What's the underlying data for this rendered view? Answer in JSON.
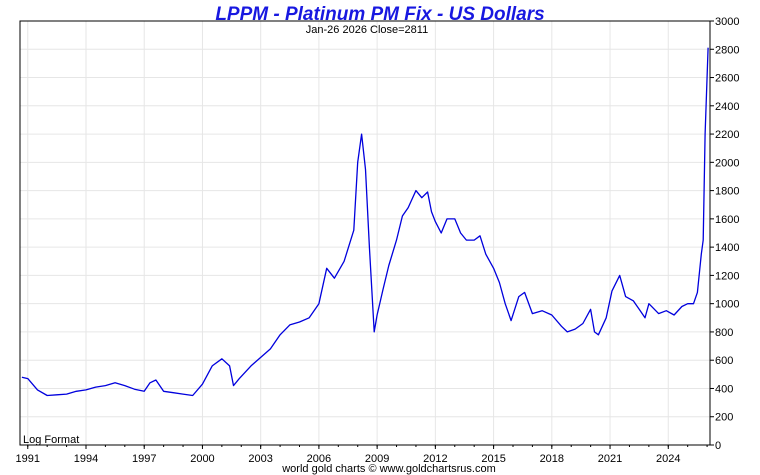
{
  "chart_data": {
    "type": "line",
    "title": "LPPM - Platinum PM Fix - US Dollars",
    "subtitle": "Jan-26  2026   Close=2811",
    "format_note": "Log Format",
    "credit": "world gold charts © www.goldchartsrus.com",
    "x_tick_labels": [
      "1991",
      "1994",
      "1997",
      "2000",
      "2003",
      "2006",
      "2009",
      "2012",
      "2015",
      "2018",
      "2021",
      "2024"
    ],
    "x_ticks": [
      1991,
      1994,
      1997,
      2000,
      2003,
      2006,
      2009,
      2012,
      2015,
      2018,
      2021,
      2024
    ],
    "xlim": [
      1990.6,
      2026.15
    ],
    "y_ticks": [
      0,
      200,
      400,
      600,
      800,
      1000,
      1200,
      1400,
      1600,
      1800,
      2000,
      2200,
      2400,
      2600,
      2800,
      3000
    ],
    "ylim": [
      0,
      3000
    ],
    "y_axis_side": "right",
    "grid": true,
    "line_color": "#0000dd",
    "series": [
      {
        "x": [
          1990.7,
          1991.0,
          1991.5,
          1992.0,
          1992.5,
          1993.0,
          1993.5,
          1994.0,
          1994.5,
          1995.0,
          1995.5,
          1996.0,
          1996.5,
          1997.0,
          1997.3,
          1997.6,
          1998.0,
          1998.5,
          1999.0,
          1999.5,
          2000.0,
          2000.5,
          2001.0,
          2001.4,
          2001.6,
          2001.9,
          2002.5,
          2003.0,
          2003.5,
          2004.0,
          2004.5,
          2005.0,
          2005.5,
          2006.0,
          2006.4,
          2006.8,
          2007.3,
          2007.8,
          2008.0,
          2008.2,
          2008.4,
          2008.6,
          2008.85,
          2009.0,
          2009.3,
          2009.6,
          2010.0,
          2010.3,
          2010.6,
          2011.0,
          2011.3,
          2011.6,
          2011.8,
          2012.0,
          2012.3,
          2012.6,
          2013.0,
          2013.3,
          2013.6,
          2014.0,
          2014.3,
          2014.6,
          2015.0,
          2015.3,
          2015.6,
          2015.9,
          2016.3,
          2016.6,
          2017.0,
          2017.5,
          2018.0,
          2018.5,
          2018.8,
          2019.2,
          2019.6,
          2020.0,
          2020.2,
          2020.4,
          2020.8,
          2021.1,
          2021.5,
          2021.8,
          2022.2,
          2022.5,
          2022.8,
          2023.0,
          2023.5,
          2023.9,
          2024.3,
          2024.7,
          2025.0,
          2025.3,
          2025.5,
          2025.7,
          2025.8,
          2025.9,
          2026.05
        ],
        "y": [
          480,
          470,
          390,
          350,
          355,
          360,
          380,
          390,
          410,
          420,
          440,
          420,
          395,
          380,
          440,
          460,
          380,
          370,
          360,
          350,
          430,
          560,
          610,
          560,
          420,
          470,
          560,
          620,
          680,
          780,
          850,
          870,
          900,
          1000,
          1250,
          1180,
          1300,
          1520,
          2000,
          2200,
          1950,
          1400,
          800,
          920,
          1100,
          1270,
          1450,
          1620,
          1680,
          1800,
          1750,
          1790,
          1650,
          1580,
          1500,
          1600,
          1600,
          1500,
          1450,
          1450,
          1480,
          1350,
          1250,
          1150,
          1000,
          880,
          1050,
          1080,
          930,
          950,
          920,
          840,
          800,
          820,
          860,
          960,
          800,
          780,
          900,
          1090,
          1200,
          1050,
          1020,
          960,
          900,
          1000,
          930,
          950,
          920,
          980,
          1000,
          1000,
          1080,
          1350,
          1450,
          2200,
          2811
        ]
      }
    ]
  }
}
